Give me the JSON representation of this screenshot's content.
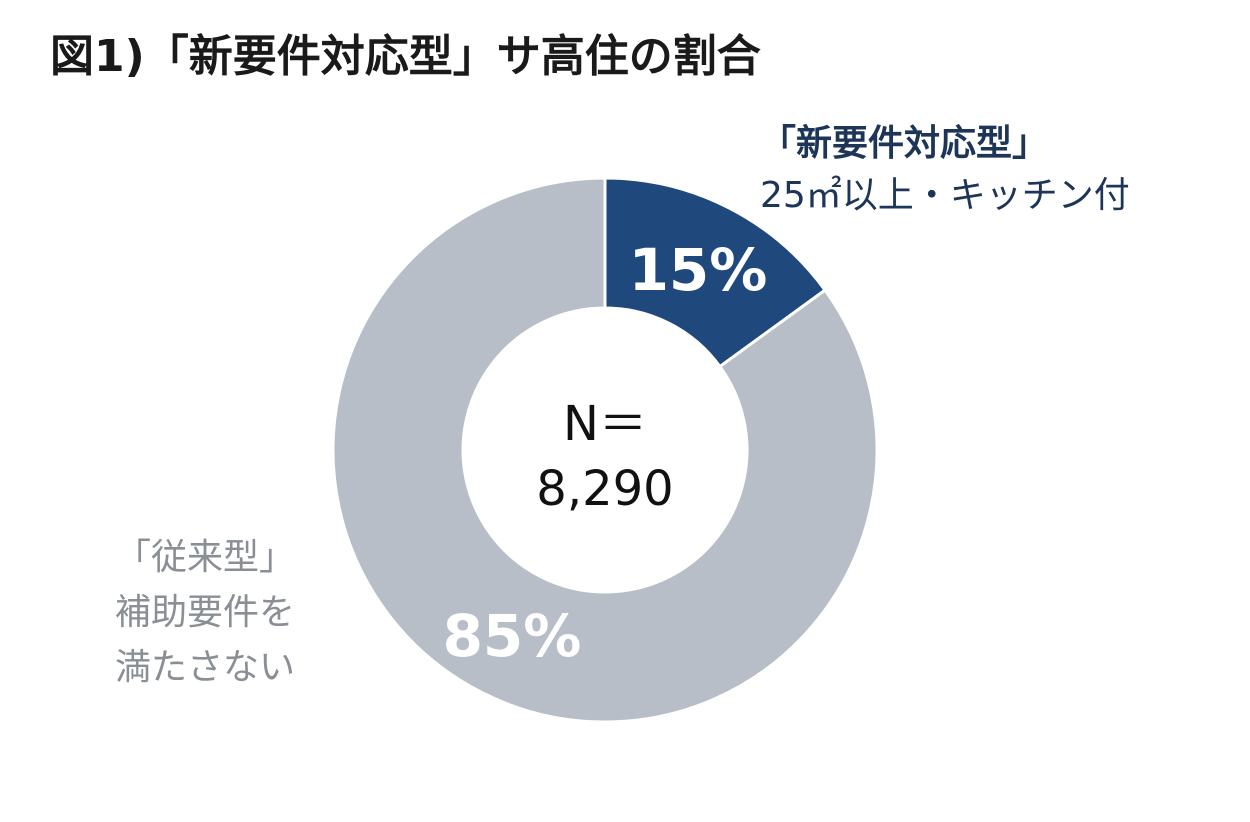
{
  "title": "図1)「新要件対応型」サ高住の割合",
  "chart_data": {
    "type": "pie",
    "variant": "donut",
    "categories": [
      "「新要件対応型」25㎡以上・キッチン付",
      "「従来型」補助要件を満たさない"
    ],
    "values": [
      15,
      85
    ],
    "value_labels": [
      "15%",
      "85%"
    ],
    "colors": [
      "#1f497d",
      "#b8bec7"
    ],
    "center_label": [
      "N＝",
      "8,290"
    ],
    "legend": "none"
  },
  "labels": {
    "new_type": {
      "line1": "「新要件対応型」",
      "line2": "25㎡以上・キッチン付"
    },
    "old_type": {
      "line1": "「従来型」",
      "line2": "補助要件を",
      "line3": "満たさない"
    }
  }
}
